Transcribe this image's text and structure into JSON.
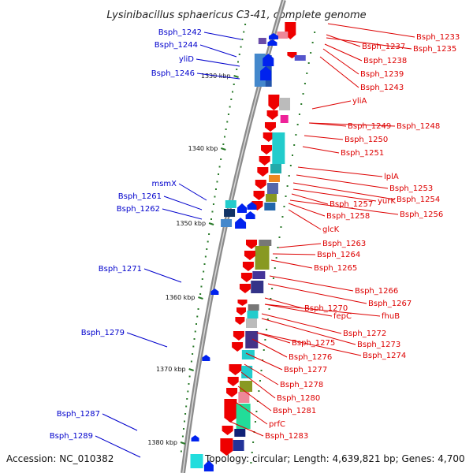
{
  "title": "Lysinibacillus sphaericus C3-41, complete genome",
  "footer": {
    "accession": "Accession: NC_010382",
    "topology": "Topology: circular; Length: 4,639,821 bp; Genes: 4,700"
  },
  "colors": {
    "left_labels": "#0000cc",
    "right_labels": "#dd0000",
    "backbone": "#8c8c8c",
    "forward_arrows": "#ee0000",
    "reverse_arrows": "#0022ee",
    "tick_marks": "#2a7a2a"
  },
  "ticks": [
    "1330 kbp",
    "1340 kbp",
    "1350 kbp",
    "1360 kbp",
    "1370 kbp",
    "1380 kbp"
  ],
  "left_labels": [
    "Bsph_1242",
    "Bsph_1244",
    "yliD",
    "Bsph_1246",
    "msmX",
    "Bsph_1261",
    "Bsph_1262",
    "Bsph_1271",
    "Bsph_1279",
    "Bsph_1287",
    "Bsph_1289"
  ],
  "right_labels": [
    "Bsph_1233",
    "Bsph_1237",
    "Bsph_1235",
    "Bsph_1238",
    "Bsph_1239",
    "Bsph_1243",
    "yliA",
    "Bsph_1249",
    "Bsph_1248",
    "Bsph_1250",
    "Bsph_1251",
    "lplA",
    "Bsph_1253",
    "Bsph_1254",
    "yurK",
    "Bsph_1257",
    "Bsph_1256",
    "Bsph_1258",
    "glcK",
    "Bsph_1263",
    "Bsph_1264",
    "Bsph_1265",
    "Bsph_1266",
    "Bsph_1267",
    "Bsph_1270",
    "fepC",
    "fhuB",
    "Bsph_1272",
    "Bsph_1273",
    "Bsph_1275",
    "Bsph_1274",
    "Bsph_1276",
    "Bsph_1277",
    "Bsph_1278",
    "Bsph_1280",
    "Bsph_1281",
    "prfC",
    "Bsph_1283"
  ]
}
